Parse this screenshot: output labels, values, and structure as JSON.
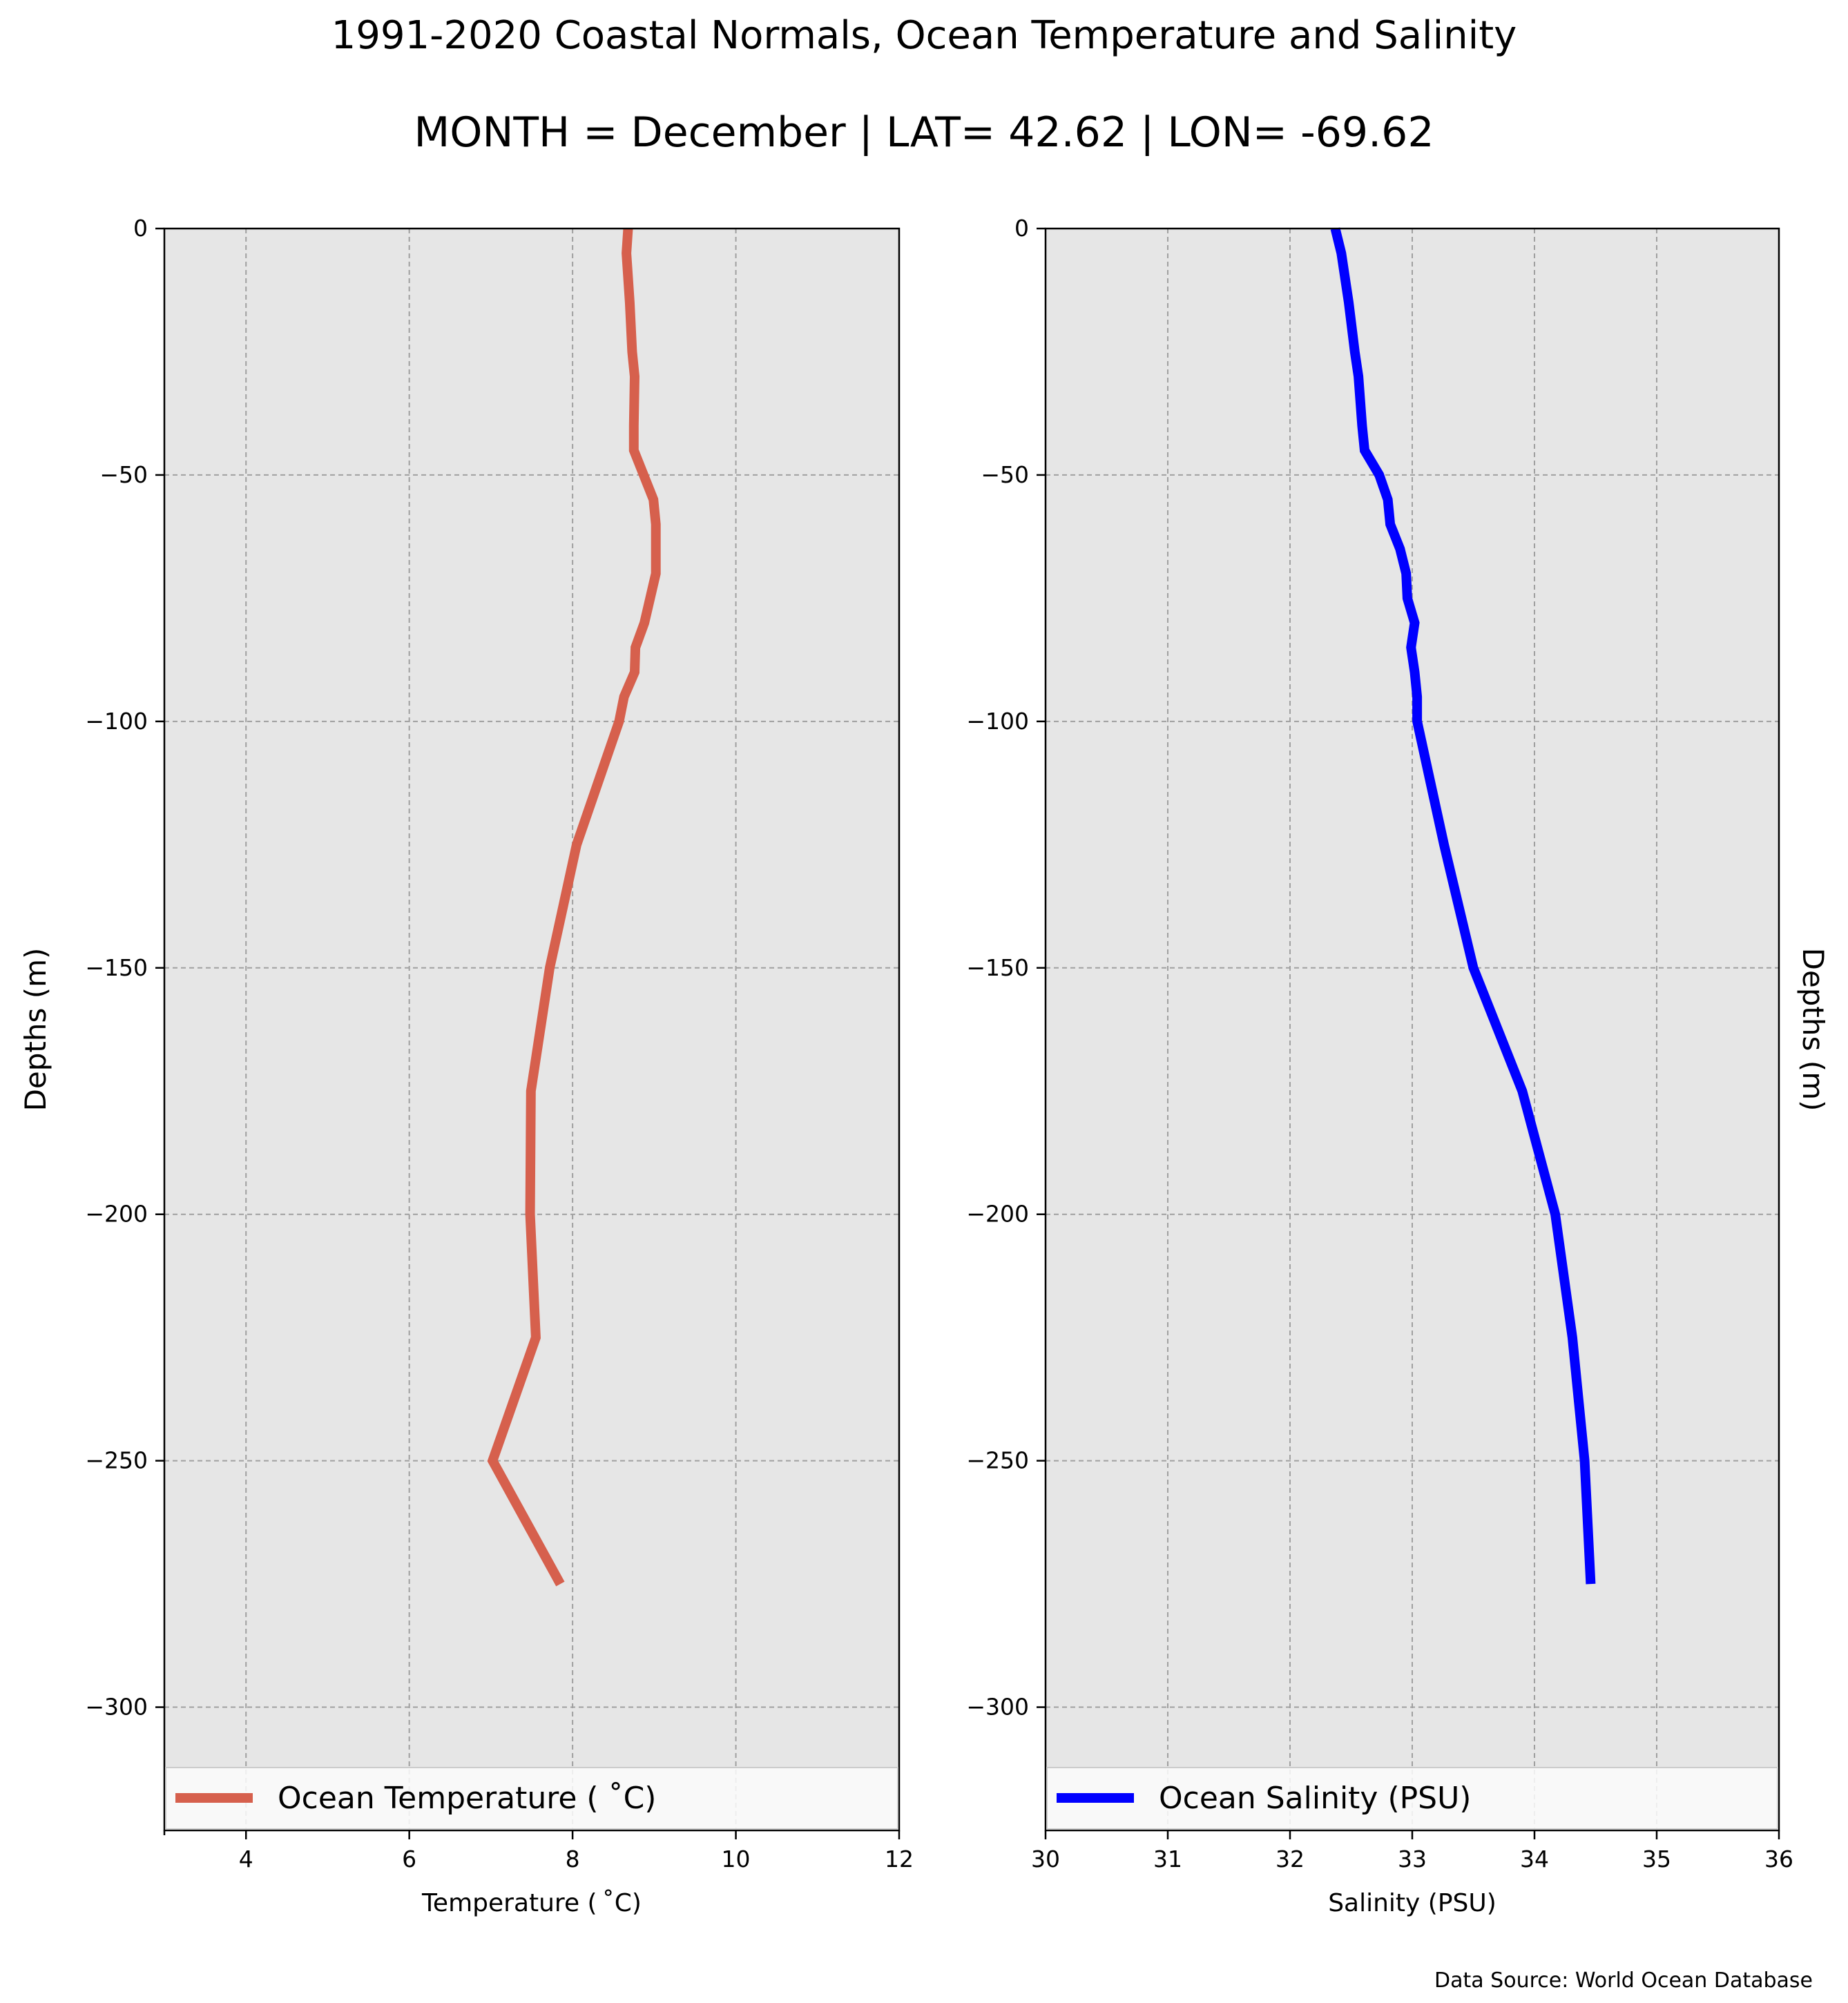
{
  "figure": {
    "title": "1991-2020 Coastal Normals, Ocean Temperature and Salinity",
    "subtitle": "MONTH = December | LAT= 42.62 | LON= -69.62",
    "footnote": "Data Source: World Ocean Database"
  },
  "chart_data": [
    {
      "type": "line",
      "orientation": "vertical-profile",
      "xlabel": "Temperature ($^\\circ$C)",
      "xlabel_display": "Temperature ( ˚C)",
      "ylabel": "Depths (m)",
      "xlim": [
        3,
        12
      ],
      "ylim": [
        -325,
        0
      ],
      "xticks": [
        4,
        6,
        8,
        10,
        12
      ],
      "yticks": [
        0,
        -50,
        -100,
        -150,
        -200,
        -250,
        -300
      ],
      "ytick_labels": [
        "0",
        "−50",
        "−100",
        "−150",
        "−200",
        "−250",
        "−300"
      ],
      "grid": true,
      "legend": "bottom",
      "series": [
        {
          "name": "Ocean Temperature ( ˚C)",
          "color": "#d6604d",
          "points": [
            [
              8.68,
              0
            ],
            [
              8.66,
              -5
            ],
            [
              8.7,
              -15
            ],
            [
              8.73,
              -25
            ],
            [
              8.76,
              -30
            ],
            [
              8.75,
              -40
            ],
            [
              8.75,
              -45
            ],
            [
              8.99,
              -55
            ],
            [
              9.02,
              -60
            ],
            [
              9.02,
              -70
            ],
            [
              8.88,
              -80
            ],
            [
              8.77,
              -85
            ],
            [
              8.76,
              -90
            ],
            [
              8.63,
              -95
            ],
            [
              8.57,
              -100
            ],
            [
              8.05,
              -125
            ],
            [
              7.72,
              -150
            ],
            [
              7.49,
              -175
            ],
            [
              7.48,
              -200
            ],
            [
              7.55,
              -225
            ],
            [
              7.02,
              -250
            ],
            [
              7.85,
              -275
            ]
          ]
        }
      ]
    },
    {
      "type": "line",
      "orientation": "vertical-profile",
      "xlabel": "Salinity (PSU)",
      "ylabel": "Depths (m)",
      "xlim": [
        30,
        36
      ],
      "ylim": [
        -325,
        0
      ],
      "xticks": [
        30,
        31,
        32,
        33,
        34,
        35,
        36
      ],
      "yticks": [
        0,
        -50,
        -100,
        -150,
        -200,
        -250,
        -300
      ],
      "ytick_labels": [
        "0",
        "−50",
        "−100",
        "−150",
        "−200",
        "−250",
        "−300"
      ],
      "grid": true,
      "legend": "bottom",
      "series": [
        {
          "name": "Ocean Salinity (PSU)",
          "color": "#0000ff",
          "points": [
            [
              32.37,
              0
            ],
            [
              32.42,
              -5
            ],
            [
              32.48,
              -15
            ],
            [
              32.53,
              -25
            ],
            [
              32.56,
              -30
            ],
            [
              32.59,
              -40
            ],
            [
              32.61,
              -45
            ],
            [
              32.73,
              -50
            ],
            [
              32.8,
              -55
            ],
            [
              32.82,
              -60
            ],
            [
              32.9,
              -65
            ],
            [
              32.95,
              -70
            ],
            [
              32.96,
              -75
            ],
            [
              33.02,
              -80
            ],
            [
              32.99,
              -85
            ],
            [
              33.02,
              -90
            ],
            [
              33.04,
              -95
            ],
            [
              33.04,
              -100
            ],
            [
              33.26,
              -125
            ],
            [
              33.5,
              -150
            ],
            [
              33.9,
              -175
            ],
            [
              34.17,
              -200
            ],
            [
              34.31,
              -225
            ],
            [
              34.41,
              -250
            ],
            [
              34.46,
              -275
            ]
          ]
        }
      ]
    }
  ]
}
